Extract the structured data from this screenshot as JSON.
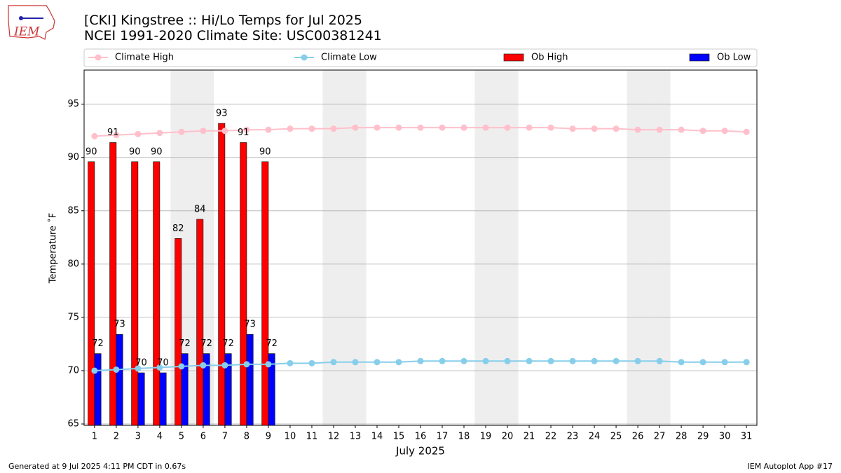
{
  "chart_data": {
    "type": "bar",
    "title": "[CKI] Kingstree :: Hi/Lo Temps for Jul 2025",
    "subtitle": "NCEI 1991-2020 Climate Site: USC00381241",
    "x_label": "July 2025",
    "y_label": "Temperature ˚F",
    "logo_text": "IEM",
    "footer_left": "Generated at 9 Jul 2025 4:11 PM CDT in 0.67s",
    "footer_right": "IEM Autoplot App #17",
    "x": [
      1,
      2,
      3,
      4,
      5,
      6,
      7,
      8,
      9,
      10,
      11,
      12,
      13,
      14,
      15,
      16,
      17,
      18,
      19,
      20,
      21,
      22,
      23,
      24,
      25,
      26,
      27,
      28,
      29,
      30,
      31
    ],
    "xlim": [
      0.52,
      31.48
    ],
    "xticks": [
      1,
      2,
      3,
      4,
      5,
      6,
      7,
      8,
      9,
      10,
      11,
      12,
      13,
      14,
      15,
      16,
      17,
      18,
      19,
      20,
      21,
      22,
      23,
      24,
      25,
      26,
      27,
      28,
      29,
      30,
      31
    ],
    "ylim": [
      64.87,
      98.2
    ],
    "yticks": [
      65,
      70,
      75,
      80,
      85,
      90,
      95
    ],
    "grid": true,
    "legend": "top",
    "shaded_days": [
      5,
      6,
      12,
      13,
      19,
      20,
      26,
      27
    ],
    "series": [
      {
        "name": "Climate High",
        "type": "line",
        "color": "#ffc0cb",
        "values": [
          92.0,
          92.1,
          92.2,
          92.3,
          92.4,
          92.5,
          92.5,
          92.6,
          92.6,
          92.7,
          92.7,
          92.7,
          92.8,
          92.8,
          92.8,
          92.8,
          92.8,
          92.8,
          92.8,
          92.8,
          92.8,
          92.8,
          92.7,
          92.7,
          92.7,
          92.6,
          92.6,
          92.6,
          92.5,
          92.5,
          92.4
        ]
      },
      {
        "name": "Climate Low",
        "type": "line",
        "color": "#87ceeb",
        "values": [
          70.0,
          70.1,
          70.2,
          70.3,
          70.4,
          70.5,
          70.5,
          70.6,
          70.6,
          70.7,
          70.7,
          70.8,
          70.8,
          70.8,
          70.8,
          70.9,
          70.9,
          70.9,
          70.9,
          70.9,
          70.9,
          70.9,
          70.9,
          70.9,
          70.9,
          70.9,
          70.9,
          70.8,
          70.8,
          70.8,
          70.8
        ]
      },
      {
        "name": "Ob High",
        "type": "bar",
        "color": "#ff0000",
        "values": [
          89.6,
          91.4,
          89.6,
          89.6,
          82.4,
          84.2,
          93.2,
          91.4,
          89.6,
          null,
          null,
          null,
          null,
          null,
          null,
          null,
          null,
          null,
          null,
          null,
          null,
          null,
          null,
          null,
          null,
          null,
          null,
          null,
          null,
          null,
          null
        ],
        "value_labels": [
          "90",
          "91",
          "90",
          "90",
          "82",
          "84",
          "93",
          "91",
          "90",
          null,
          null,
          null,
          null,
          null,
          null,
          null,
          null,
          null,
          null,
          null,
          null,
          null,
          null,
          null,
          null,
          null,
          null,
          null,
          null,
          null,
          null
        ]
      },
      {
        "name": "Ob Low",
        "type": "bar",
        "color": "#0000ff",
        "values": [
          71.6,
          73.4,
          69.8,
          69.8,
          71.6,
          71.6,
          71.6,
          73.4,
          71.6,
          null,
          null,
          null,
          null,
          null,
          null,
          null,
          null,
          null,
          null,
          null,
          null,
          null,
          null,
          null,
          null,
          null,
          null,
          null,
          null,
          null,
          null
        ],
        "value_labels": [
          "72",
          "73",
          "70",
          "70",
          "72",
          "72",
          "72",
          "73",
          "72",
          null,
          null,
          null,
          null,
          null,
          null,
          null,
          null,
          null,
          null,
          null,
          null,
          null,
          null,
          null,
          null,
          null,
          null,
          null,
          null,
          null,
          null
        ]
      }
    ]
  }
}
